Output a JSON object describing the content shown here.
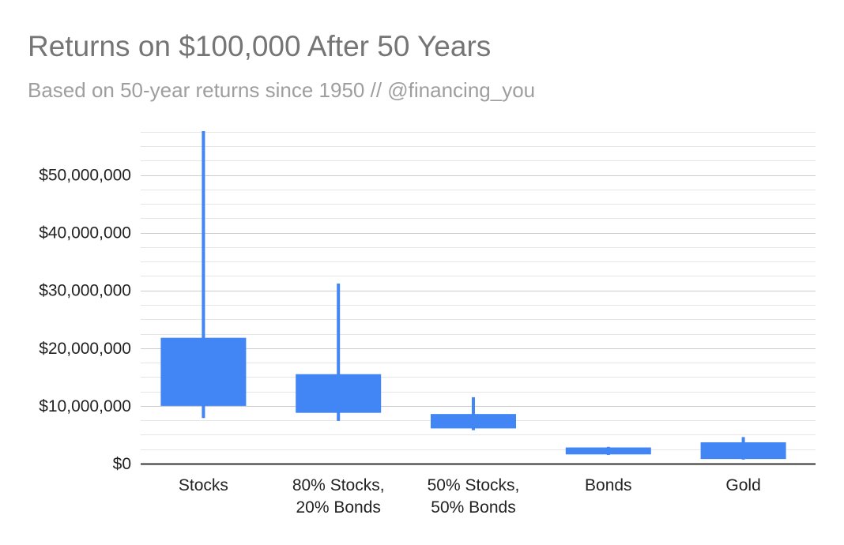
{
  "chart_data": {
    "type": "candlestick",
    "title": "Returns on $100,000 After 50 Years",
    "subtitle": "Based on 50-year returns since 1950 // @financing_you",
    "xlabel": "",
    "ylabel": "",
    "categories": [
      [
        "Stocks"
      ],
      [
        "80% Stocks,",
        "20% Bonds"
      ],
      [
        "50% Stocks,",
        "50% Bonds"
      ],
      [
        "Bonds"
      ],
      [
        "Gold"
      ]
    ],
    "series": [
      {
        "low": [
          7900000,
          7400000,
          5800000,
          1500000,
          700000
        ],
        "open": [
          10000000,
          8800000,
          6100000,
          1600000,
          800000
        ],
        "close": [
          21800000,
          15500000,
          8600000,
          2800000,
          3700000
        ],
        "high": [
          57600000,
          31200000,
          11500000,
          2900000,
          4600000
        ]
      }
    ],
    "ylim": [
      0,
      57600000
    ],
    "yticks": [
      0,
      10000000,
      20000000,
      30000000,
      40000000,
      50000000
    ],
    "ytick_labels": [
      "$0",
      "$10,000,000",
      "$20,000,000",
      "$30,000,000",
      "$40,000,000",
      "$50,000,000"
    ],
    "grid": true,
    "minor_grid": true,
    "legend": "none",
    "color": "#4285f4"
  }
}
